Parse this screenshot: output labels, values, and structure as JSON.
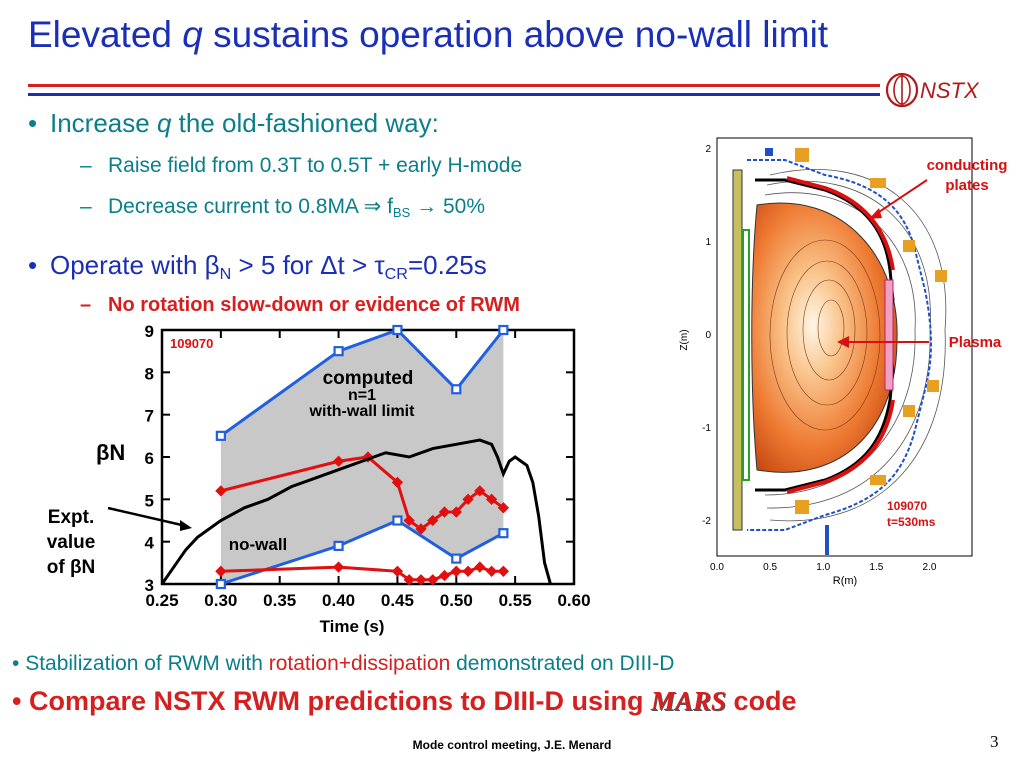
{
  "title": {
    "pre": "Elevated ",
    "q": "q",
    "post": " sustains operation above no-wall limit"
  },
  "logo": {
    "text": "NSTX"
  },
  "bullets": {
    "b1": {
      "pre": "Increase ",
      "q": "q",
      "post": " the old-fashioned way:"
    },
    "b1a": "Raise field from 0.3T to 0.5T + early H-mode",
    "b1b": {
      "pre": "Decrease current to 0.8MA ",
      "arrow1": "⇒",
      "mid": " f",
      "sub": "BS",
      "arrow2": "→",
      "post": " 50%"
    },
    "b2": {
      "pre": "Operate with ",
      "beta": "β",
      "sub": "N",
      "mid": " > 5 for ",
      "delta": "Δt > ",
      "tau": "τ",
      "sub2": "CR",
      "post": "=0.25s"
    },
    "b2a": "No rotation slow-down or evidence of RWM"
  },
  "footer_bullets": {
    "f1": {
      "pre": "Stabilization of RWM with ",
      "red": "rotation+dissipation",
      "post": " demonstrated on DIII-D"
    },
    "f2": {
      "pre": "Compare NSTX RWM predictions to DIII-D using ",
      "mars": "MARS",
      "post": " code"
    }
  },
  "footer": "Mode control meeting, J.E. Menard",
  "page_number": "3",
  "chart_data": {
    "type": "line",
    "xlabel": "Time (s)",
    "ylabel": "βN",
    "xlim": [
      0.25,
      0.6
    ],
    "ylim": [
      3,
      9
    ],
    "xticks": [
      "0.25",
      "0.30",
      "0.35",
      "0.40",
      "0.45",
      "0.50",
      "0.55",
      "0.60"
    ],
    "yticks": [
      "3",
      "4",
      "5",
      "6",
      "7",
      "8",
      "9"
    ],
    "shot_label": "109070",
    "annotations": {
      "computed": "computed",
      "n1": "n=1",
      "withwall": "with-wall limit",
      "nowall": "no-wall",
      "expt1": "Expt.",
      "expt2": "value",
      "expt3": "of βN"
    },
    "colors": {
      "withwall": "#1f5fe0",
      "nowall": "#1f5fe0",
      "expt_red": "#e01010",
      "measured": "#000000",
      "fill": "#c8c8c8"
    },
    "series": [
      {
        "x": [
          0.3,
          0.4,
          0.45,
          0.5,
          0.54
        ],
        "y": [
          6.5,
          8.5,
          9.0,
          7.6,
          9.0
        ]
      },
      {
        "x": [
          0.3,
          0.4,
          0.45,
          0.5,
          0.54
        ],
        "y": [
          3.0,
          3.9,
          4.5,
          3.6,
          4.2
        ]
      },
      {
        "x": [
          0.3,
          0.4,
          0.425,
          0.45,
          0.46,
          0.47,
          0.48,
          0.49,
          0.5,
          0.51,
          0.52,
          0.53,
          0.54
        ],
        "y": [
          5.2,
          5.9,
          6.0,
          5.4,
          4.5,
          4.3,
          4.5,
          4.7,
          4.7,
          5.0,
          5.2,
          5.0,
          4.8
        ]
      },
      {
        "x": [
          0.3,
          0.4,
          0.45,
          0.46,
          0.47,
          0.48,
          0.49,
          0.5,
          0.51,
          0.52,
          0.53,
          0.54
        ],
        "y": [
          3.3,
          3.4,
          3.3,
          3.1,
          3.1,
          3.1,
          3.2,
          3.3,
          3.3,
          3.4,
          3.3,
          3.3
        ]
      },
      {
        "x": [
          0.25,
          0.26,
          0.27,
          0.28,
          0.3,
          0.32,
          0.34,
          0.36,
          0.38,
          0.4,
          0.42,
          0.44,
          0.46,
          0.48,
          0.5,
          0.52,
          0.53,
          0.535,
          0.54,
          0.545,
          0.55,
          0.555,
          0.56,
          0.565,
          0.57,
          0.575,
          0.58
        ],
        "y": [
          3.0,
          3.4,
          3.8,
          4.1,
          4.5,
          4.8,
          5.0,
          5.3,
          5.5,
          5.7,
          5.9,
          6.1,
          6.0,
          6.2,
          6.3,
          6.4,
          6.3,
          6.0,
          5.6,
          5.9,
          6.0,
          5.9,
          5.8,
          5.4,
          4.6,
          3.5,
          3.0
        ]
      }
    ]
  },
  "equilibrium": {
    "ylabel": "Z(m)",
    "xlabel": "R(m)",
    "xticks": [
      "0.0",
      "0.5",
      "1.0",
      "1.5",
      "2.0"
    ],
    "yticks": [
      "2",
      "1",
      "0",
      "-1",
      "-2"
    ],
    "label_plates1": "conducting",
    "label_plates2": "plates",
    "label_plasma": "Plasma",
    "label_shot": "109070",
    "label_time": "t=530ms"
  }
}
